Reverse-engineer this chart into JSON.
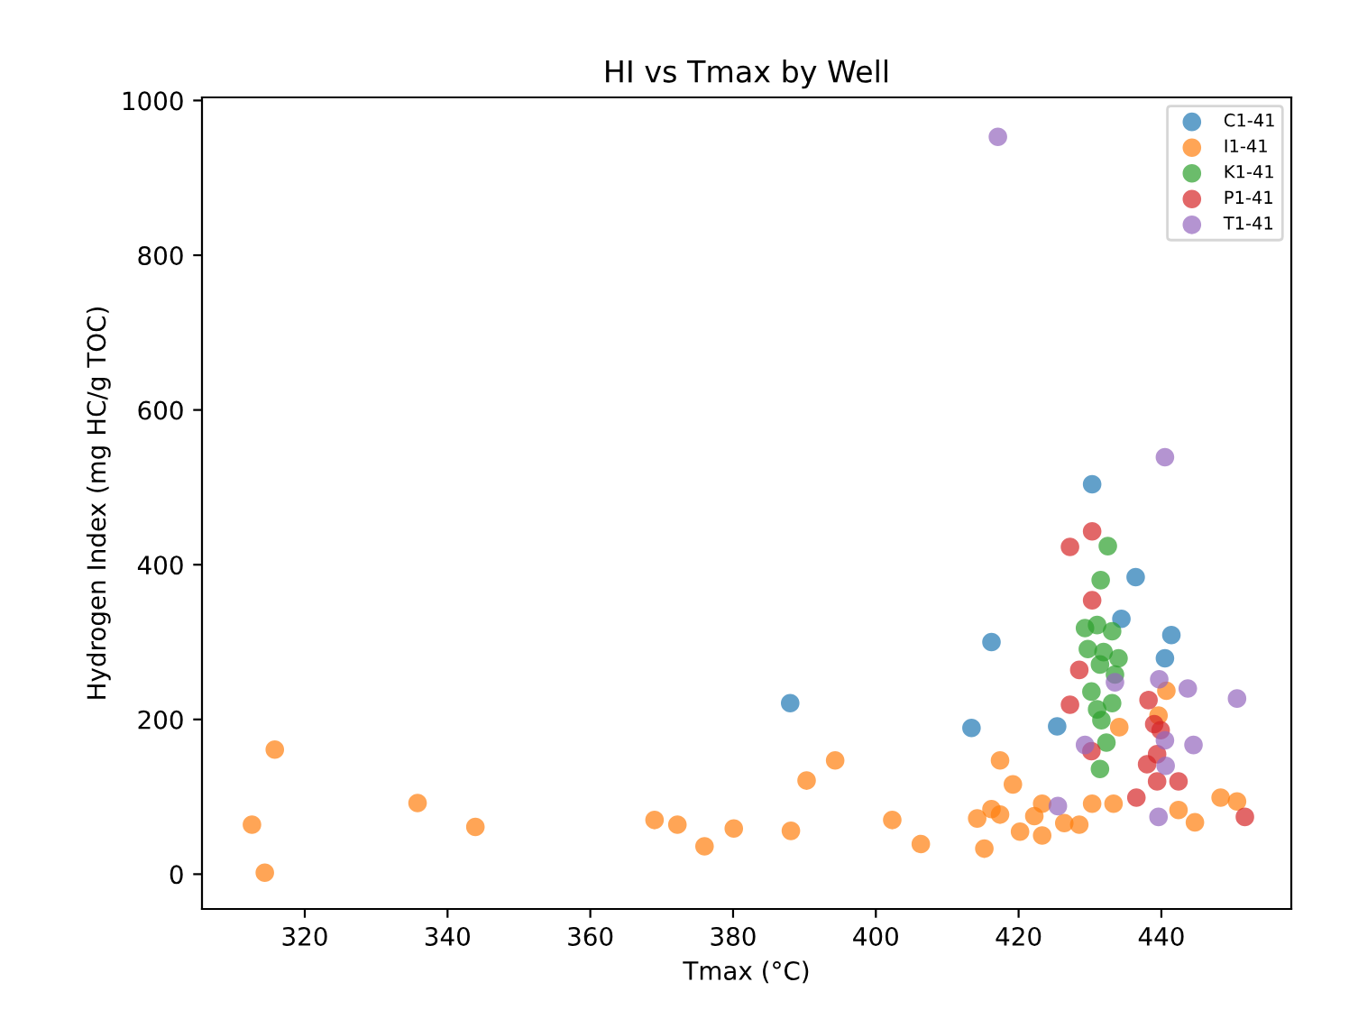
{
  "chart_data": {
    "type": "scatter",
    "title": "HI vs Tmax by Well",
    "xlabel": "Tmax (°C)",
    "ylabel": "Hydrogen Index (mg HC/g TOC)",
    "xlim": [
      305.6,
      458.2
    ],
    "ylim": [
      -45,
      1004
    ],
    "xticks": [
      320,
      340,
      360,
      380,
      400,
      420,
      440
    ],
    "yticks": [
      0,
      200,
      400,
      600,
      800,
      1000
    ],
    "grid": false,
    "legend": "top right",
    "marker": "circle",
    "series": [
      {
        "name": "C1-41",
        "color": "#1f77b4",
        "x": [
          388,
          430.3,
          436.4,
          434.4,
          441.4,
          440.5,
          416.2,
          413.4,
          425.4
        ],
        "values": [
          221,
          504,
          384,
          330,
          309,
          279,
          300,
          189,
          191
        ]
      },
      {
        "name": "I1-41",
        "color": "#ff7f0e",
        "x": [
          312.6,
          314.4,
          315.8,
          335.8,
          343.9,
          369,
          372.2,
          376,
          380.1,
          388.1,
          390.3,
          394.3,
          402.3,
          406.3,
          415.2,
          414.2,
          416.2,
          417.4,
          417.4,
          419.2,
          420.2,
          423.3,
          422.2,
          423.3,
          426.4,
          428.5,
          430.3,
          433.3,
          434.1,
          440.7,
          439.6,
          442.4,
          444.7,
          448.3,
          450.6
        ],
        "values": [
          64,
          2,
          161,
          92,
          61,
          70,
          64,
          36,
          59,
          56,
          121,
          147,
          70,
          39,
          33,
          72,
          84,
          77,
          147,
          116,
          55,
          50,
          75,
          91,
          66,
          64,
          91,
          91,
          190,
          237,
          205,
          83,
          67,
          99,
          94
        ]
      },
      {
        "name": "K1-41",
        "color": "#2ca02c",
        "x": [
          432.5,
          431.5,
          429.3,
          431,
          433.1,
          429.7,
          431.9,
          434,
          431.4,
          433.5,
          430.2,
          433.1,
          431,
          432.3,
          431.4,
          431.6
        ],
        "values": [
          424,
          380,
          318,
          322,
          314,
          291,
          287,
          279,
          271,
          258,
          236,
          221,
          213,
          170,
          136,
          199
        ]
      },
      {
        "name": "P1-41",
        "color": "#d62728",
        "x": [
          430.3,
          427.2,
          430.3,
          428.5,
          427.2,
          438.2,
          439,
          439.9,
          439.4,
          438,
          442.4,
          439.4,
          436.5,
          451.7,
          430.2
        ],
        "values": [
          443,
          423,
          354,
          264,
          219,
          225,
          194,
          186,
          155,
          142,
          120,
          120,
          99,
          74,
          159
        ]
      },
      {
        "name": "T1-41",
        "color": "#9467bd",
        "x": [
          417.1,
          440.5,
          439.7,
          443.7,
          450.6,
          440.5,
          444.5,
          429.3,
          440.6,
          439.6,
          425.5,
          433.5
        ],
        "values": [
          953,
          539,
          252,
          240,
          227,
          173,
          167,
          167,
          140,
          74,
          88,
          248
        ]
      }
    ]
  }
}
